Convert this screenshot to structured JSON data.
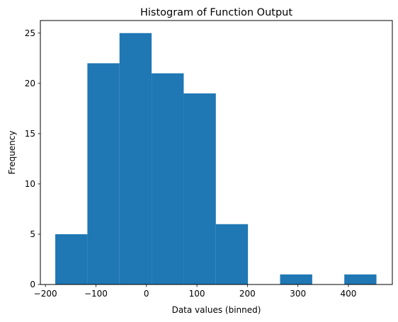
{
  "chart_data": {
    "type": "bar",
    "title": "Histogram of Function Output",
    "xlabel": "Data values (binned)",
    "ylabel": "Frequency",
    "bin_edges": [
      -180.5,
      -116.9,
      -53.3,
      10.3,
      73.9,
      137.5,
      201.1,
      264.7,
      328.3,
      391.9,
      455.5
    ],
    "values": [
      5,
      22,
      25,
      21,
      19,
      6,
      0,
      1,
      0,
      1
    ],
    "xlim": [
      -210,
      487
    ],
    "ylim": [
      0,
      26.25
    ],
    "xticks": [
      -200,
      -100,
      0,
      100,
      200,
      300,
      400
    ],
    "xtick_labels": [
      "−200",
      "−100",
      "0",
      "100",
      "200",
      "300",
      "400"
    ],
    "yticks": [
      0,
      5,
      10,
      15,
      20,
      25
    ],
    "ytick_labels": [
      "0",
      "5",
      "10",
      "15",
      "20",
      "25"
    ],
    "bar_color": "#1f77b4",
    "grid": false,
    "legend": "none"
  }
}
